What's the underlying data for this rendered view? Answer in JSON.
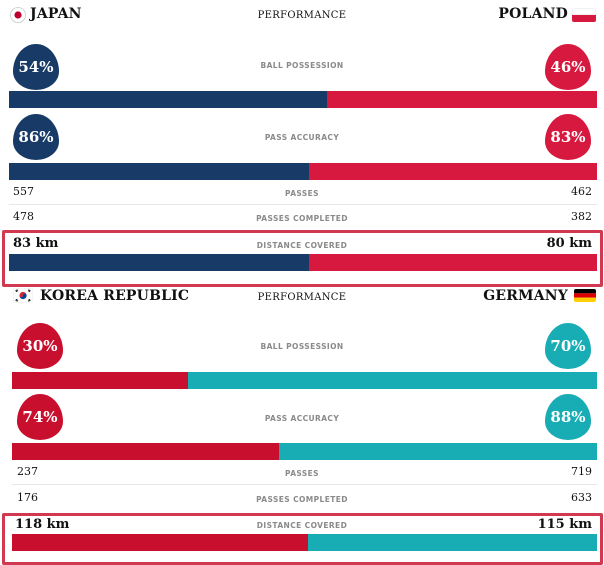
{
  "colors": {
    "japan": "#173b66",
    "poland": "#d7193f",
    "korea": "#c8102e",
    "germany": "#18adb4",
    "highlight": "#d0394f"
  },
  "panels": [
    {
      "home_team": "JAPAN",
      "away_team": "POLAND",
      "title": "PERFORMANCE",
      "home_color": "#173b66",
      "away_color": "#d7193f",
      "ball_possession": {
        "label": "BALL POSSESSION",
        "home": "54%",
        "away": "46%",
        "home_share": 0.54
      },
      "pass_accuracy": {
        "label": "PASS ACCURACY",
        "home": "86%",
        "away": "83%",
        "home_share": 0.51
      },
      "passes": {
        "label": "PASSES",
        "home": "557",
        "away": "462"
      },
      "passes_completed": {
        "label": "PASSES COMPLETED",
        "home": "478",
        "away": "382"
      },
      "distance_covered": {
        "label": "DISTANCE COVERED",
        "home": "83 km",
        "away": "80 km",
        "home_share": 0.51
      }
    },
    {
      "home_team": "KOREA REPUBLIC",
      "away_team": "GERMANY",
      "title": "PERFORMANCE",
      "home_color": "#c8102e",
      "away_color": "#18adb4",
      "ball_possession": {
        "label": "BALL POSSESSION",
        "home": "30%",
        "away": "70%",
        "home_share": 0.3
      },
      "pass_accuracy": {
        "label": "PASS ACCURACY",
        "home": "74%",
        "away": "88%",
        "home_share": 0.457
      },
      "passes": {
        "label": "PASSES",
        "home": "237",
        "away": "719"
      },
      "passes_completed": {
        "label": "PASSES COMPLETED",
        "home": "176",
        "away": "633"
      },
      "distance_covered": {
        "label": "DISTANCE COVERED",
        "home": "118 km",
        "away": "115 km",
        "home_share": 0.506
      }
    }
  ],
  "icons": {
    "japan_flag": "japan-flag-icon",
    "poland_flag": "poland-flag-icon",
    "korea_flag": "korea-flag-icon",
    "germany_flag": "germany-flag-icon"
  }
}
